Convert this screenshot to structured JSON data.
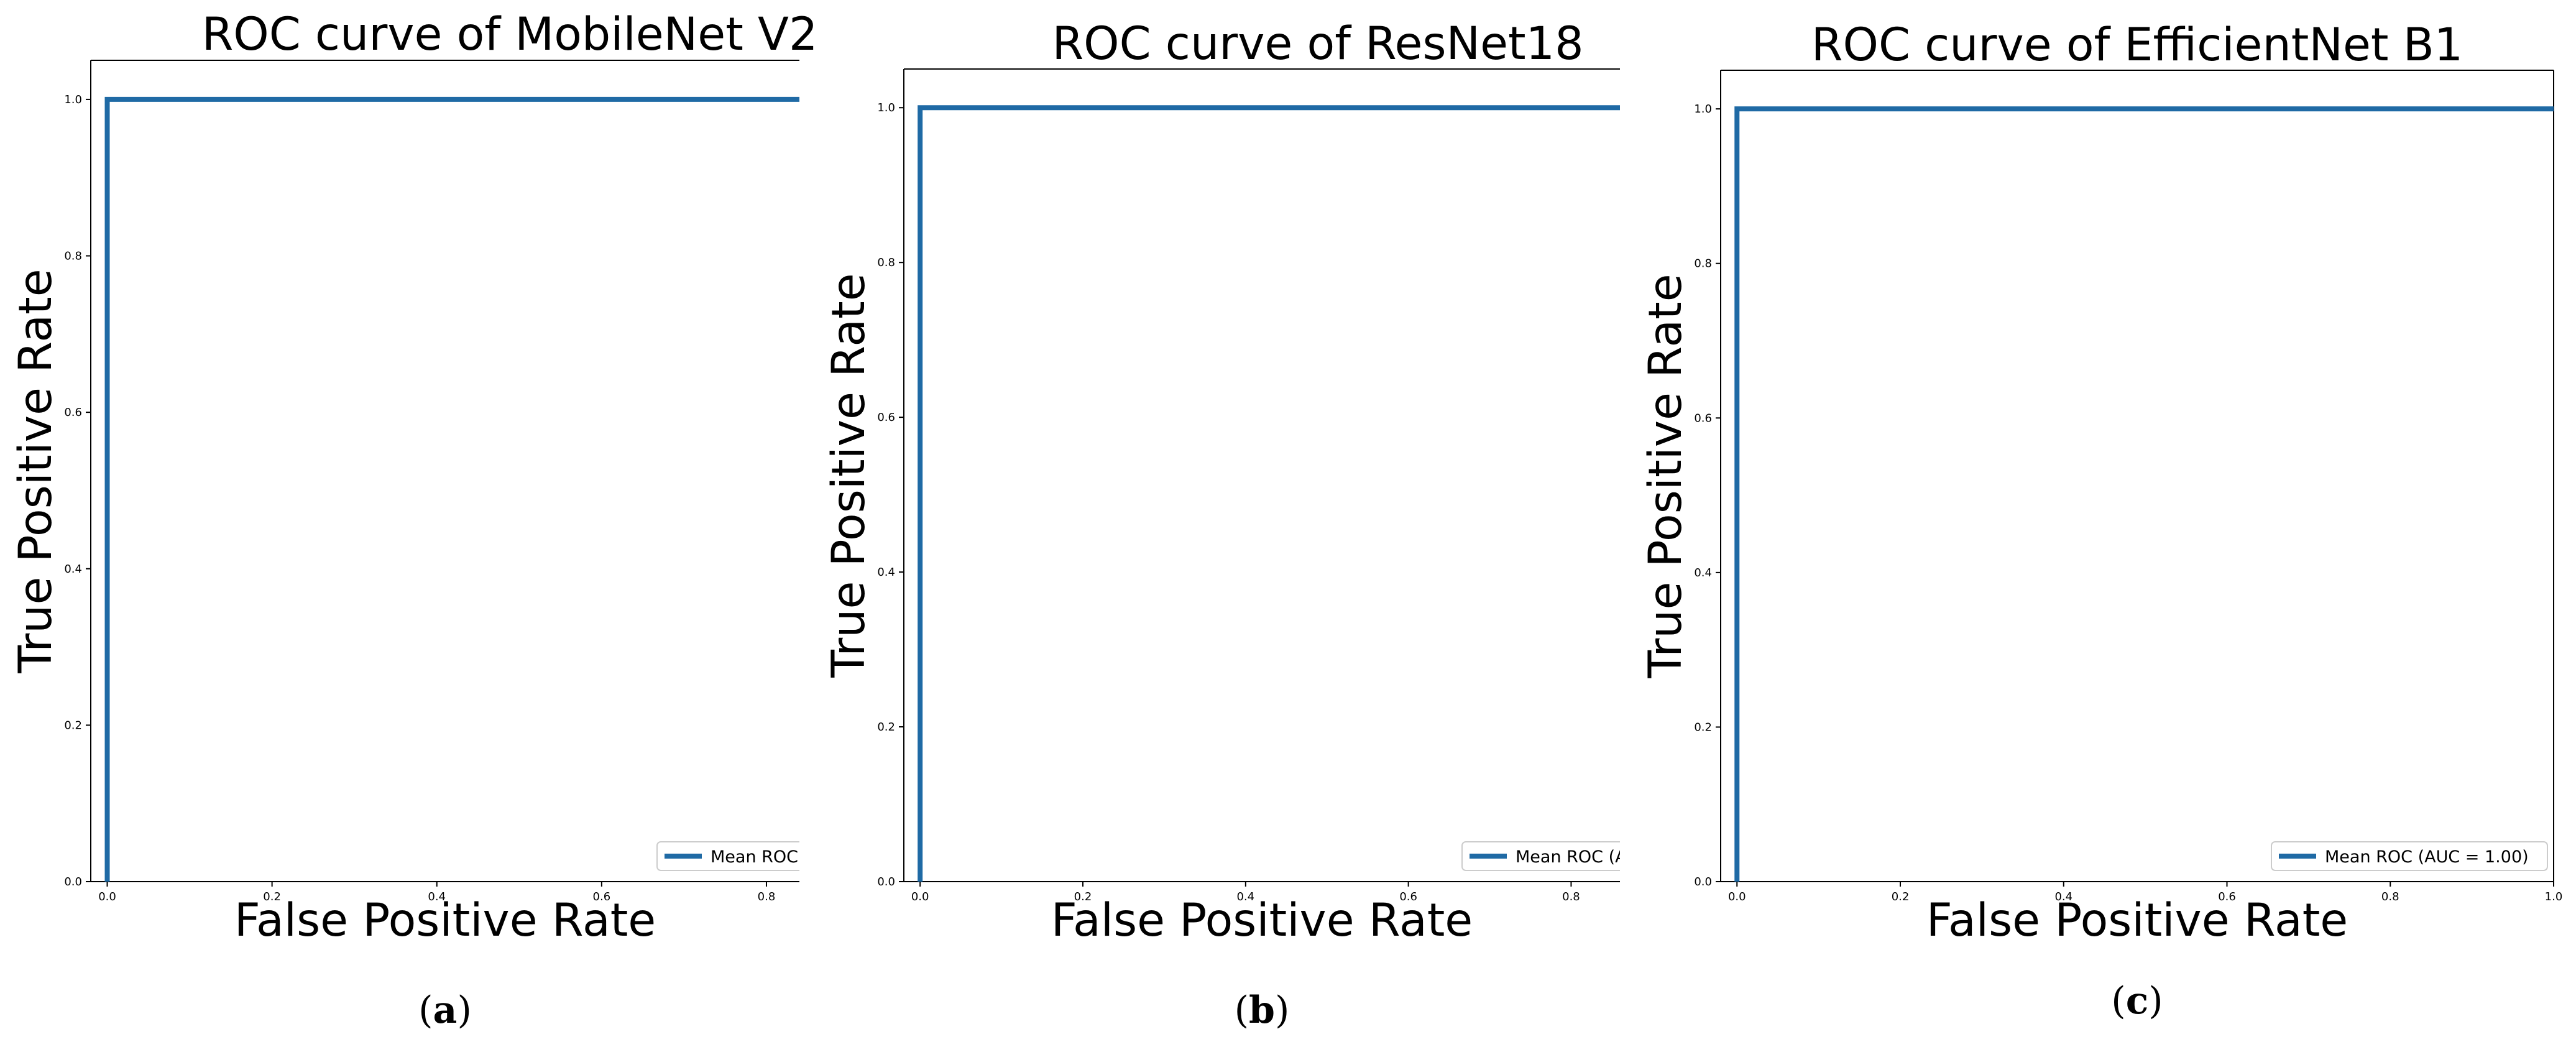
{
  "chart_data": [
    {
      "type": "line",
      "title": "ROC curve of MobileNet V2",
      "xlabel": "False Positive Rate",
      "ylabel": "True Positive Rate",
      "xlim": [
        -0.02,
        0.84
      ],
      "ylim": [
        0.0,
        1.05
      ],
      "xticks": [
        "0.0",
        "0.2",
        "0.4",
        "0.6",
        "0.8"
      ],
      "yticks": [
        "0.0",
        "0.2",
        "0.4",
        "0.6",
        "0.8",
        "1.0"
      ],
      "series": [
        {
          "name": "Mean ROC",
          "x": [
            0.0,
            0.0,
            0.84
          ],
          "y": [
            0.0,
            1.0,
            1.0
          ],
          "color": "#1f6aa5"
        }
      ],
      "legend_label": "Mean ROC",
      "legend_position": "bottom-right",
      "caption": "a"
    },
    {
      "type": "line",
      "title": "ROC curve of ResNet18",
      "xlabel": "False Positive Rate",
      "ylabel": "True Positive Rate",
      "xlim": [
        -0.02,
        0.86
      ],
      "ylim": [
        0.0,
        1.05
      ],
      "xticks": [
        "0.0",
        "0.2",
        "0.4",
        "0.6",
        "0.8"
      ],
      "yticks": [
        "0.0",
        "0.2",
        "0.4",
        "0.6",
        "0.8",
        "1.0"
      ],
      "series": [
        {
          "name": "Mean ROC",
          "x": [
            0.0,
            0.0,
            0.86
          ],
          "y": [
            0.0,
            1.0,
            1.0
          ],
          "color": "#1f6aa5"
        }
      ],
      "legend_label": "Mean ROC (A",
      "legend_position": "bottom-right",
      "caption": "b"
    },
    {
      "type": "line",
      "title": "ROC curve of EfficientNet B1",
      "xlabel": "False Positive Rate",
      "ylabel": "True Positive Rate",
      "xlim": [
        -0.02,
        1.0
      ],
      "ylim": [
        0.0,
        1.05
      ],
      "xticks": [
        "0.0",
        "0.2",
        "0.4",
        "0.6",
        "0.8",
        "1.0"
      ],
      "yticks": [
        "0.0",
        "0.2",
        "0.4",
        "0.6",
        "0.8",
        "1.0"
      ],
      "series": [
        {
          "name": "Mean ROC (AUC = 1.00)",
          "x": [
            0.0,
            0.0,
            1.0
          ],
          "y": [
            0.0,
            1.0,
            1.0
          ],
          "color": "#1f6aa5"
        }
      ],
      "legend_label": "Mean ROC (AUC = 1.00)",
      "legend_position": "bottom-right",
      "caption": "c"
    }
  ]
}
